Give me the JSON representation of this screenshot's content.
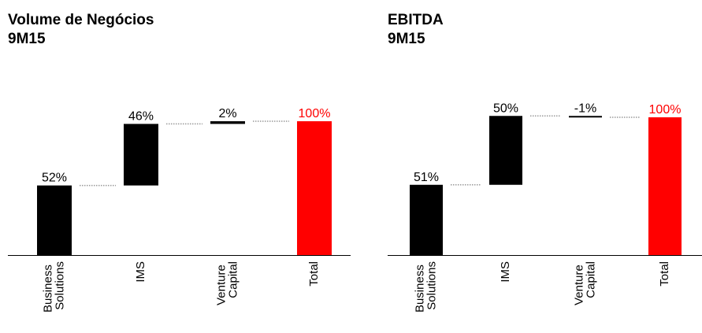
{
  "chart_data": [
    {
      "type": "waterfall",
      "title": "Volume de Negócios",
      "subtitle": "9M15",
      "categories": [
        "Business Solutions",
        "IMS",
        "Venture Capital",
        "Total"
      ],
      "values": [
        52,
        46,
        2,
        100
      ],
      "value_labels": [
        "52%",
        "46%",
        "2%",
        "100%"
      ],
      "colors": [
        "#000000",
        "#000000",
        "#000000",
        "#ff0000"
      ],
      "ylim": [
        0,
        100
      ]
    },
    {
      "type": "waterfall",
      "title": "EBITDA",
      "subtitle": "9M15",
      "categories": [
        "Business Solutions",
        "IMS",
        "Venture Capital",
        "Total"
      ],
      "values": [
        51,
        50,
        -1,
        100
      ],
      "value_labels": [
        "51%",
        "50%",
        "-1%",
        "100%"
      ],
      "colors": [
        "#000000",
        "#000000",
        "#000000",
        "#ff0000"
      ],
      "ylim": [
        0,
        100
      ]
    }
  ]
}
